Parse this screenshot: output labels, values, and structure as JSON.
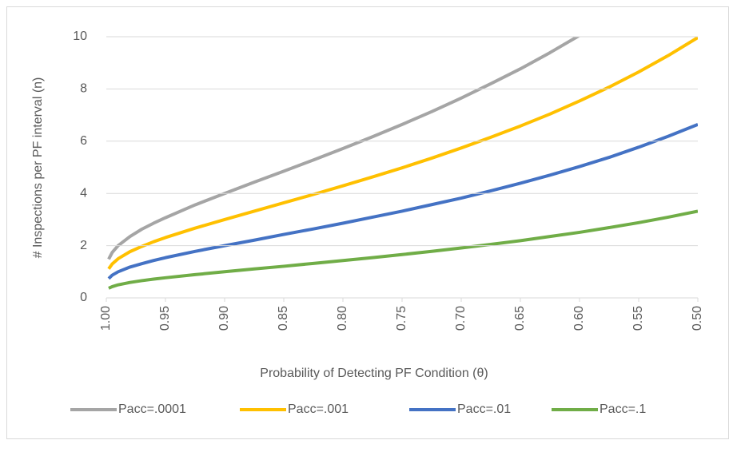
{
  "chart_data": {
    "type": "line",
    "x_label": "Probability of Detecting PF Condition (θ)",
    "y_label": "# Inspections per PF interval (n)",
    "x": [
      0.998,
      0.995,
      0.99,
      0.98,
      0.97,
      0.96,
      0.95,
      0.925,
      0.9,
      0.875,
      0.85,
      0.825,
      0.8,
      0.775,
      0.75,
      0.725,
      0.7,
      0.675,
      0.65,
      0.625,
      0.6,
      0.575,
      0.55,
      0.525,
      0.5
    ],
    "series": [
      {
        "name": "Pacc=.0001",
        "color": "#a5a5a5",
        "values": [
          1.48,
          1.74,
          2.0,
          2.35,
          2.63,
          2.86,
          3.07,
          3.56,
          4.0,
          4.43,
          4.85,
          5.28,
          5.72,
          6.17,
          6.64,
          7.13,
          7.65,
          8.2,
          8.77,
          9.39,
          10.05,
          null,
          null,
          null,
          null
        ]
      },
      {
        "name": "Pacc=.001",
        "color": "#ffc000",
        "values": [
          1.11,
          1.3,
          1.5,
          1.77,
          1.97,
          2.15,
          2.31,
          2.67,
          3.0,
          3.32,
          3.64,
          3.96,
          4.29,
          4.63,
          4.98,
          5.35,
          5.74,
          6.15,
          6.58,
          7.04,
          7.54,
          8.07,
          8.65,
          9.28,
          9.97
        ]
      },
      {
        "name": "Pacc=.01",
        "color": "#4472c4",
        "values": [
          0.74,
          0.87,
          1.0,
          1.18,
          1.31,
          1.43,
          1.54,
          1.78,
          2.0,
          2.21,
          2.43,
          2.64,
          2.86,
          3.09,
          3.32,
          3.57,
          3.82,
          4.1,
          4.39,
          4.7,
          5.03,
          5.38,
          5.77,
          6.19,
          6.64
        ]
      },
      {
        "name": "Pacc=.1",
        "color": "#70ad47",
        "values": [
          0.37,
          0.43,
          0.5,
          0.59,
          0.66,
          0.72,
          0.77,
          0.89,
          1.0,
          1.11,
          1.21,
          1.32,
          1.43,
          1.54,
          1.66,
          1.78,
          1.91,
          2.05,
          2.19,
          2.35,
          2.51,
          2.69,
          2.88,
          3.09,
          3.32
        ]
      }
    ],
    "xlim": [
      1.0,
      0.5
    ],
    "xticks": [
      {
        "value": 1.0,
        "label": "1.00"
      },
      0.95,
      {
        "value": 0.9,
        "label": "0.90"
      },
      0.85,
      {
        "value": 0.8,
        "label": "0.80"
      },
      0.75,
      {
        "value": 0.7,
        "label": "0.70"
      },
      0.65,
      {
        "value": 0.6,
        "label": "0.60"
      },
      0.55,
      {
        "value": 0.5,
        "label": "0.50"
      }
    ],
    "ylim": [
      0,
      10
    ],
    "yticks": [
      0,
      2,
      4,
      6,
      8,
      10
    ],
    "grid": true,
    "legend": "bottom"
  }
}
